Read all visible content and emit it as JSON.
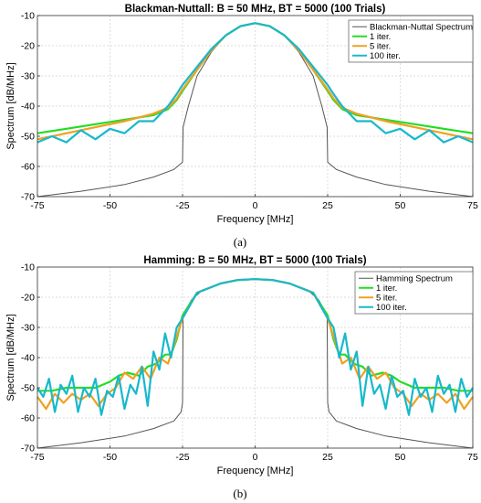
{
  "chart_data": [
    {
      "type": "line",
      "title": "Blackman-Nuttall: B = 50 MHz, BT = 5000 (100 Trials)",
      "xlabel": "Frequency [MHz]",
      "ylabel": "Spectrum [dB/MHz]",
      "xlim": [
        -75,
        75
      ],
      "ylim": [
        -70,
        -10
      ],
      "xticks": [
        -75,
        -50,
        -25,
        0,
        25,
        50,
        75
      ],
      "yticks": [
        -10,
        -20,
        -30,
        -40,
        -50,
        -60,
        -70
      ],
      "grid": true,
      "legend_position": "top-right",
      "caption": "(a)",
      "series": [
        {
          "name": "Blackman-Nuttal Spectrum",
          "color": "#555555",
          "x": [
            -75,
            -60,
            -45,
            -35,
            -28,
            -25.5,
            -25,
            -24.8,
            -23,
            -20,
            -15,
            -10,
            -5,
            0,
            5,
            10,
            15,
            20,
            23,
            24.8,
            25,
            25.5,
            28,
            35,
            45,
            60,
            75
          ],
          "y": [
            -70,
            -68.2,
            -66,
            -63.5,
            -61,
            -59,
            -58.5,
            -47,
            -40,
            -30,
            -22,
            -16.5,
            -13.5,
            -12.5,
            -13.5,
            -16.5,
            -22,
            -30,
            -40,
            -47,
            -58.5,
            -59,
            -61,
            -63.5,
            -66,
            -68.2,
            -70
          ]
        },
        {
          "name": "1 iter.",
          "color": "#22dd22",
          "x": [
            -75,
            -65,
            -55,
            -45,
            -35,
            -30,
            -27,
            -25,
            -20,
            -15,
            -10,
            -5,
            0,
            5,
            10,
            15,
            20,
            25,
            27,
            30,
            35,
            45,
            55,
            65,
            75
          ],
          "y": [
            -49,
            -47.5,
            -46,
            -44.5,
            -43,
            -41,
            -38,
            -35,
            -28,
            -21.5,
            -16.5,
            -13.5,
            -12.5,
            -13.5,
            -16.5,
            -21.5,
            -28,
            -35,
            -38,
            -41,
            -43,
            -44.5,
            -46,
            -47.5,
            -49
          ]
        },
        {
          "name": "5 iter.",
          "color": "#f0a020",
          "x": [
            -75,
            -65,
            -55,
            -45,
            -35,
            -30,
            -27,
            -25,
            -20,
            -15,
            -10,
            -5,
            0,
            5,
            10,
            15,
            20,
            25,
            27,
            30,
            35,
            45,
            55,
            65,
            75
          ],
          "y": [
            -51,
            -49,
            -47,
            -45,
            -42.5,
            -40.5,
            -37.5,
            -34.5,
            -28,
            -21.5,
            -16.5,
            -13.5,
            -12.5,
            -13.5,
            -16.5,
            -21.5,
            -28,
            -34.5,
            -37.5,
            -40.5,
            -42.5,
            -45,
            -47,
            -49,
            -51
          ]
        },
        {
          "name": "100 iter.",
          "color": "#18b8cc",
          "x": [
            -75,
            -70,
            -65,
            -60,
            -55,
            -50,
            -45,
            -40,
            -35,
            -30,
            -27,
            -25,
            -20,
            -15,
            -10,
            -5,
            0,
            5,
            10,
            15,
            20,
            25,
            27,
            30,
            35,
            40,
            45,
            50,
            55,
            60,
            65,
            70,
            75
          ],
          "y": [
            -52,
            -50,
            -52,
            -48,
            -51,
            -47.5,
            -49,
            -45,
            -45,
            -40,
            -36,
            -33,
            -27,
            -21,
            -16.5,
            -13.5,
            -12.5,
            -13.5,
            -16.5,
            -21,
            -27,
            -33,
            -36,
            -40,
            -45,
            -45,
            -49,
            -47.5,
            -51,
            -48,
            -52,
            -50,
            -52
          ]
        }
      ]
    },
    {
      "type": "line",
      "title": "Hamming: B = 50 MHz, BT = 5000 (100 Trials)",
      "xlabel": "Frequency [MHz]",
      "ylabel": "Spectrum [dB/MHz]",
      "xlim": [
        -75,
        75
      ],
      "ylim": [
        -70,
        -10
      ],
      "xticks": [
        -75,
        -50,
        -25,
        0,
        25,
        50,
        75
      ],
      "yticks": [
        -10,
        -20,
        -30,
        -40,
        -50,
        -60,
        -70
      ],
      "grid": true,
      "legend_position": "top-right",
      "caption": "(b)",
      "series": [
        {
          "name": "Hamming Spectrum",
          "color": "#555555",
          "x": [
            -75,
            -60,
            -45,
            -35,
            -28,
            -25.5,
            -25,
            -24.8,
            -22,
            -18,
            -12,
            -6,
            0,
            6,
            12,
            18,
            22,
            24.8,
            25,
            25.5,
            28,
            35,
            45,
            60,
            75
          ],
          "y": [
            -70,
            -68.2,
            -66,
            -63.5,
            -61,
            -58,
            -55,
            -26,
            -21,
            -17.5,
            -15.5,
            -14.3,
            -14,
            -14.3,
            -15.5,
            -17.5,
            -21,
            -26,
            -55,
            -58,
            -61,
            -63.5,
            -66,
            -68.2,
            -70
          ]
        },
        {
          "name": "1 iter.",
          "color": "#22dd22",
          "x": [
            -75,
            -70,
            -65,
            -62,
            -58,
            -55,
            -50,
            -47,
            -44,
            -40,
            -37,
            -34,
            -31,
            -29,
            -27,
            -25,
            -20,
            -12,
            -6,
            0,
            6,
            12,
            20,
            25,
            27,
            29,
            31,
            34,
            37,
            40,
            44,
            47,
            50,
            55,
            58,
            62,
            65,
            70,
            75
          ],
          "y": [
            -51,
            -51,
            -50,
            -50,
            -50,
            -50,
            -48,
            -46,
            -45,
            -46,
            -43,
            -42,
            -39,
            -39,
            -34,
            -26,
            -18.5,
            -15.5,
            -14.3,
            -14,
            -14.3,
            -15.5,
            -18.5,
            -26,
            -34,
            -39,
            -39,
            -42,
            -43,
            -46,
            -45,
            -46,
            -48,
            -50,
            -50,
            -50,
            -50,
            -51,
            -51
          ]
        },
        {
          "name": "5 iter.",
          "color": "#f0a020",
          "x": [
            -75,
            -72,
            -69,
            -66,
            -63,
            -60,
            -57,
            -54,
            -51,
            -48,
            -45,
            -42,
            -39,
            -36,
            -33,
            -30,
            -27,
            -25,
            -20,
            -12,
            -6,
            0,
            6,
            12,
            20,
            25,
            27,
            30,
            33,
            36,
            39,
            42,
            45,
            48,
            51,
            54,
            57,
            60,
            63,
            66,
            69,
            72,
            75
          ],
          "y": [
            -53,
            -57,
            -52,
            -55,
            -52,
            -54,
            -52,
            -56,
            -52,
            -50,
            -45,
            -47,
            -43,
            -47,
            -40,
            -42,
            -33,
            -27,
            -18.5,
            -15.5,
            -14.3,
            -14,
            -14.3,
            -15.5,
            -18.5,
            -27,
            -33,
            -42,
            -40,
            -47,
            -43,
            -47,
            -45,
            -50,
            -52,
            -56,
            -52,
            -54,
            -52,
            -55,
            -52,
            -57,
            -53
          ]
        },
        {
          "name": "100 iter.",
          "color": "#18b8cc",
          "x": [
            -75,
            -73,
            -71,
            -69,
            -67,
            -65,
            -63,
            -61,
            -59,
            -57,
            -55,
            -53,
            -51,
            -49,
            -47,
            -45,
            -43,
            -41,
            -39,
            -37,
            -35,
            -33,
            -31,
            -29,
            -27,
            -25,
            -20,
            -12,
            -6,
            0,
            6,
            12,
            20,
            25,
            27,
            29,
            31,
            33,
            35,
            37,
            39,
            41,
            43,
            45,
            47,
            49,
            51,
            53,
            55,
            57,
            59,
            61,
            63,
            65,
            67,
            69,
            71,
            73,
            75
          ],
          "y": [
            -50,
            -53,
            -47,
            -58,
            -49,
            -52,
            -46,
            -58,
            -50,
            -53,
            -47,
            -59,
            -51,
            -53,
            -46,
            -57,
            -49,
            -52,
            -43,
            -56,
            -38,
            -44,
            -32,
            -40,
            -30,
            -27,
            -18.5,
            -15.5,
            -14.3,
            -14,
            -14.3,
            -15.5,
            -18.5,
            -27,
            -30,
            -40,
            -32,
            -44,
            -38,
            -56,
            -43,
            -52,
            -49,
            -57,
            -46,
            -53,
            -51,
            -59,
            -47,
            -53,
            -50,
            -58,
            -46,
            -52,
            -49,
            -58,
            -47,
            -53,
            -50
          ]
        }
      ]
    }
  ]
}
